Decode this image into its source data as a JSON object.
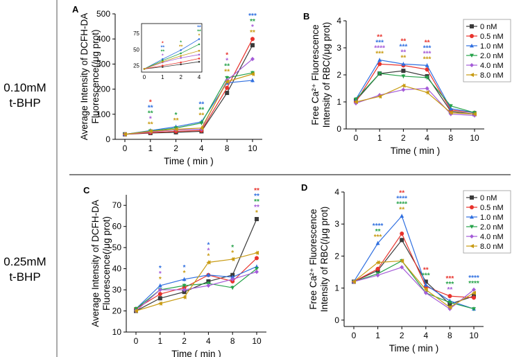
{
  "row_labels": [
    [
      "0.10mM",
      "t-BHP"
    ],
    [
      "0.25mM",
      "t-BHP"
    ]
  ],
  "colors": {
    "0": "#3a3a3a",
    "0.5": "#e8322c",
    "1.0": "#2f6fe0",
    "2.0": "#25a249",
    "4.0": "#a45bd8",
    "8.0": "#c89b12"
  },
  "series_names": [
    "0",
    "0.5",
    "1.0",
    "2.0",
    "4.0",
    "8.0"
  ],
  "chart_data": [
    {
      "id": "A",
      "type": "line",
      "panel_label": "A",
      "categories": [
        "0",
        "1",
        "2",
        "4",
        "8",
        "10"
      ],
      "xlabel": "Time ( min )",
      "ylabel": [
        "Average Intensity of DCFH-DA",
        "Fluorescence(/μg prot)"
      ],
      "ylim": [
        0,
        500
      ],
      "yticks": [
        0,
        100,
        200,
        300,
        400,
        500
      ],
      "legend": false,
      "series": [
        {
          "name": "0",
          "values": [
            20,
            25,
            28,
            32,
            185,
            375
          ]
        },
        {
          "name": "0.5",
          "values": [
            20,
            27,
            32,
            35,
            205,
            400
          ]
        },
        {
          "name": "1.0",
          "values": [
            20,
            35,
            50,
            70,
            225,
            235
          ]
        },
        {
          "name": "2.0",
          "values": [
            20,
            33,
            45,
            65,
            245,
            265
          ]
        },
        {
          "name": "4.0",
          "values": [
            20,
            30,
            38,
            40,
            235,
            320
          ]
        },
        {
          "name": "8.0",
          "values": [
            20,
            32,
            40,
            45,
            230,
            260
          ]
        }
      ],
      "stars": [
        {
          "cat": 1,
          "labels": [
            [
              "*",
              "0.5"
            ],
            [
              "**",
              "1.0"
            ],
            [
              "**",
              "2.0"
            ],
            [
              "*",
              "4.0"
            ],
            [
              "**",
              "8.0"
            ]
          ]
        },
        {
          "cat": 2,
          "labels": [
            [
              "*",
              "2.0"
            ],
            [
              "**",
              "8.0"
            ]
          ]
        },
        {
          "cat": 3,
          "labels": [
            [
              "**",
              "1.0"
            ],
            [
              "**",
              "2.0"
            ],
            [
              "**",
              "8.0"
            ]
          ]
        },
        {
          "cat": 4,
          "labels": [
            [
              "*",
              "0.5"
            ],
            [
              "*",
              "4.0"
            ],
            [
              "**",
              "2.0"
            ],
            [
              "**",
              "8.0"
            ]
          ]
        },
        {
          "cat": 5,
          "labels": [
            [
              "***",
              "1.0"
            ],
            [
              "**",
              "2.0"
            ],
            [
              "*",
              "4.0"
            ],
            [
              "**",
              "8.0"
            ]
          ]
        }
      ],
      "inset": {
        "categories": [
          "0",
          "1",
          "2",
          "4"
        ],
        "ylim": [
          15,
          90
        ],
        "yticks": [
          25,
          50,
          75
        ],
        "series": [
          {
            "name": "0",
            "values": [
              20,
              23,
              27,
              31
            ]
          },
          {
            "name": "0.5",
            "values": [
              20,
              25,
              30,
              36
            ]
          },
          {
            "name": "1.0",
            "values": [
              20,
              35,
              49,
              66
            ]
          },
          {
            "name": "2.0",
            "values": [
              20,
              33,
              44,
              58
            ]
          },
          {
            "name": "4.0",
            "values": [
              20,
              30,
              37,
              42
            ]
          },
          {
            "name": "8.0",
            "values": [
              20,
              31,
              40,
              48
            ]
          }
        ],
        "stars": [
          {
            "cat": 1,
            "labels": [
              [
                "*",
                "0.5"
              ],
              [
                "**",
                "1.0"
              ],
              [
                "**",
                "2.0"
              ],
              [
                "*",
                "4.0"
              ]
            ]
          },
          {
            "cat": 2,
            "labels": [
              [
                "*",
                "2.0"
              ],
              [
                "**",
                "8.0"
              ]
            ]
          },
          {
            "cat": 3,
            "labels": [
              [
                "**",
                "1.0"
              ],
              [
                "**",
                "2.0"
              ],
              [
                "*",
                "8.0"
              ]
            ]
          }
        ]
      }
    },
    {
      "id": "B",
      "type": "line",
      "panel_label": "B",
      "categories": [
        "0",
        "1",
        "2",
        "4",
        "8",
        "10"
      ],
      "xlabel": "Time ( min )",
      "ylabel": [
        "Free Ca²⁺ Fluorescence",
        "Intensity of RBC(/μg prot)"
      ],
      "ylim": [
        0,
        4
      ],
      "yticks": [
        0,
        1,
        2,
        3,
        4
      ],
      "legend": true,
      "legend_labels": [
        "0    nM",
        "0.5 nM",
        "1.0 nM",
        "2.0 nM",
        "4.0 nM",
        "8.0 nM"
      ],
      "series": [
        {
          "name": "0",
          "values": [
            1.05,
            2.05,
            2.15,
            1.95,
            0.65,
            0.55
          ]
        },
        {
          "name": "0.5",
          "values": [
            1.0,
            2.4,
            2.35,
            2.2,
            0.7,
            0.6
          ]
        },
        {
          "name": "1.0",
          "values": [
            1.1,
            2.55,
            2.4,
            2.35,
            0.75,
            0.6
          ]
        },
        {
          "name": "2.0",
          "values": [
            1.1,
            2.05,
            1.95,
            1.9,
            0.85,
            0.6
          ]
        },
        {
          "name": "4.0",
          "values": [
            0.95,
            1.25,
            1.45,
            1.5,
            0.55,
            0.5
          ]
        },
        {
          "name": "8.0",
          "values": [
            1.0,
            1.2,
            1.6,
            1.35,
            0.6,
            0.55
          ]
        }
      ],
      "stars": [
        {
          "cat": 1,
          "labels": [
            [
              "**",
              "0.5"
            ],
            [
              "***",
              "1.0"
            ],
            [
              "****",
              "4.0"
            ],
            [
              "***",
              "8.0"
            ]
          ]
        },
        {
          "cat": 2,
          "labels": [
            [
              "**",
              "0.5"
            ],
            [
              "***",
              "1.0"
            ],
            [
              "**",
              "4.0"
            ],
            [
              "**",
              "8.0"
            ]
          ]
        },
        {
          "cat": 3,
          "labels": [
            [
              "**",
              "0.5"
            ],
            [
              "***",
              "1.0"
            ],
            [
              "***",
              "4.0"
            ],
            [
              "***",
              "8.0"
            ]
          ]
        }
      ]
    },
    {
      "id": "C",
      "type": "line",
      "panel_label": "C",
      "categories": [
        "0",
        "1",
        "2",
        "4",
        "8",
        "10"
      ],
      "xlabel": "Time ( min )",
      "ylabel": [
        "Average Intensity of DCFH-DA",
        "Fluorescence(/μg prot)"
      ],
      "ylim": [
        10,
        75
      ],
      "yticks": [
        10,
        20,
        30,
        40,
        50,
        60,
        70
      ],
      "legend": false,
      "series": [
        {
          "name": "0",
          "values": [
            20,
            26,
            29,
            34,
            37,
            63.5
          ]
        },
        {
          "name": "0.5",
          "values": [
            21,
            28,
            31,
            37,
            34,
            45
          ]
        },
        {
          "name": "1.0",
          "values": [
            21,
            32,
            35,
            37,
            36,
            41
          ]
        },
        {
          "name": "2.0",
          "values": [
            21,
            30,
            32,
            33,
            31,
            40
          ]
        },
        {
          "name": "4.0",
          "values": [
            20,
            30,
            30,
            32,
            35,
            38.5
          ]
        },
        {
          "name": "8.0",
          "values": [
            20,
            23.5,
            26.5,
            43,
            44.5,
            47.5
          ]
        }
      ],
      "stars": [
        {
          "cat": 1,
          "labels": [
            [
              "*",
              "1.0"
            ],
            [
              "*",
              "4.0"
            ],
            [
              "*",
              "8.0"
            ]
          ]
        },
        {
          "cat": 2,
          "labels": [
            [
              "*",
              "1.0"
            ],
            [
              "*",
              "8.0"
            ]
          ]
        },
        {
          "cat": 3,
          "labels": [
            [
              "*",
              "1.0"
            ],
            [
              "*",
              "4.0"
            ],
            [
              "*",
              "8.0"
            ]
          ]
        },
        {
          "cat": 4,
          "labels": [
            [
              "*",
              "2.0"
            ],
            [
              "*",
              "8.0"
            ]
          ]
        },
        {
          "cat": 5,
          "labels": [
            [
              "**",
              "0.5"
            ],
            [
              "**",
              "1.0"
            ],
            [
              "**",
              "2.0"
            ],
            [
              "**",
              "4.0"
            ],
            [
              "*",
              "8.0"
            ]
          ]
        }
      ]
    },
    {
      "id": "D",
      "type": "line",
      "panel_label": "D",
      "categories": [
        "0",
        "1",
        "2",
        "4",
        "8",
        "10"
      ],
      "xlabel": "Time ( min )",
      "ylabel": [
        "Free Ca²⁺ Fluorescence",
        "Intensity of RBC(/μg prot)"
      ],
      "ylim": [
        -0.2,
        4
      ],
      "yticks": [
        0,
        1,
        2,
        3,
        4
      ],
      "legend": true,
      "legend_labels": [
        "0    nM",
        "0.5 nM",
        "1.0 nM",
        "2.0 nM",
        "4.0 nM",
        "8.0 nM"
      ],
      "series": [
        {
          "name": "0",
          "values": [
            1.2,
            1.55,
            2.5,
            1.2,
            0.5,
            0.75
          ]
        },
        {
          "name": "0.5",
          "values": [
            1.2,
            1.6,
            2.7,
            1.05,
            0.75,
            0.7
          ]
        },
        {
          "name": "1.0",
          "values": [
            1.2,
            2.4,
            3.25,
            1.1,
            0.6,
            0.35
          ]
        },
        {
          "name": "2.0",
          "values": [
            1.2,
            1.45,
            1.85,
            0.85,
            0.55,
            0.35
          ]
        },
        {
          "name": "4.0",
          "values": [
            1.2,
            1.4,
            1.65,
            0.85,
            0.35,
            0.95
          ]
        },
        {
          "name": "8.0",
          "values": [
            1.2,
            1.8,
            1.85,
            0.95,
            0.4,
            0.85
          ]
        }
      ],
      "stars": [
        {
          "cat": 1,
          "labels": [
            [
              "****",
              "1.0"
            ],
            [
              "**",
              "2.0"
            ],
            [
              "***",
              "8.0"
            ]
          ]
        },
        {
          "cat": 2,
          "labels": [
            [
              "**",
              "0.5"
            ],
            [
              "****",
              "1.0"
            ],
            [
              "****",
              "2.0"
            ],
            [
              "**",
              "8.0"
            ]
          ]
        },
        {
          "cat": 3,
          "labels": [
            [
              "**",
              "0.5"
            ],
            [
              "***",
              "2.0"
            ]
          ]
        },
        {
          "cat": 4,
          "labels": [
            [
              "***",
              "0.5"
            ],
            [
              "***",
              "2.0"
            ],
            [
              "**",
              "4.0"
            ]
          ]
        },
        {
          "cat": 5,
          "labels": [
            [
              "****",
              "1.0"
            ],
            [
              "****",
              "2.0"
            ]
          ]
        }
      ]
    }
  ]
}
